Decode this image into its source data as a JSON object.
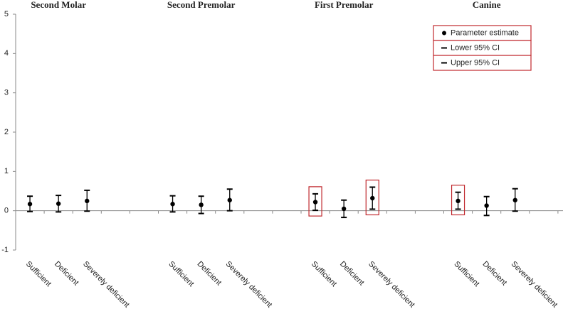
{
  "chart_data": {
    "type": "errorbar",
    "groups": [
      "Second Molar",
      "Second Premolar",
      "First Premolar",
      "Canine"
    ],
    "categories": [
      "Sufficient",
      "Deficient",
      "Severely deficient",
      null,
      null,
      "Sufficient",
      "Deficient",
      "Severely deficient",
      null,
      null,
      "Sufficient",
      "Deficient",
      "Severely deficient",
      null,
      null,
      "Sufficient",
      "Deficient",
      "Severely deficient",
      null,
      null
    ],
    "series": [
      {
        "name": "Parameter estimate",
        "color": "#000000",
        "values": [
          0.17,
          0.18,
          0.25,
          null,
          null,
          0.17,
          0.15,
          0.27,
          null,
          null,
          0.22,
          0.05,
          0.32,
          null,
          null,
          0.25,
          0.13,
          0.27,
          null,
          null
        ]
      },
      {
        "name": "Lower 95% CI",
        "color": "#000000",
        "values": [
          -0.02,
          -0.03,
          -0.01,
          null,
          null,
          -0.03,
          -0.07,
          0.0,
          null,
          null,
          0.01,
          -0.17,
          0.04,
          null,
          null,
          0.04,
          -0.12,
          -0.01,
          null,
          null
        ]
      },
      {
        "name": "Upper 95% CI",
        "color": "#000000",
        "values": [
          0.37,
          0.39,
          0.52,
          null,
          null,
          0.38,
          0.37,
          0.55,
          null,
          null,
          0.43,
          0.27,
          0.6,
          null,
          null,
          0.47,
          0.36,
          0.56,
          null,
          null
        ]
      }
    ],
    "highlighted": [
      10,
      12,
      15
    ],
    "highlight_color": "#c0282d",
    "legend_border_color": "#c0282d",
    "legend_position": "upper right",
    "ylim": [
      -1,
      5
    ],
    "yticks": [
      -1,
      0,
      1,
      2,
      3,
      4,
      5
    ],
    "grid": false
  }
}
